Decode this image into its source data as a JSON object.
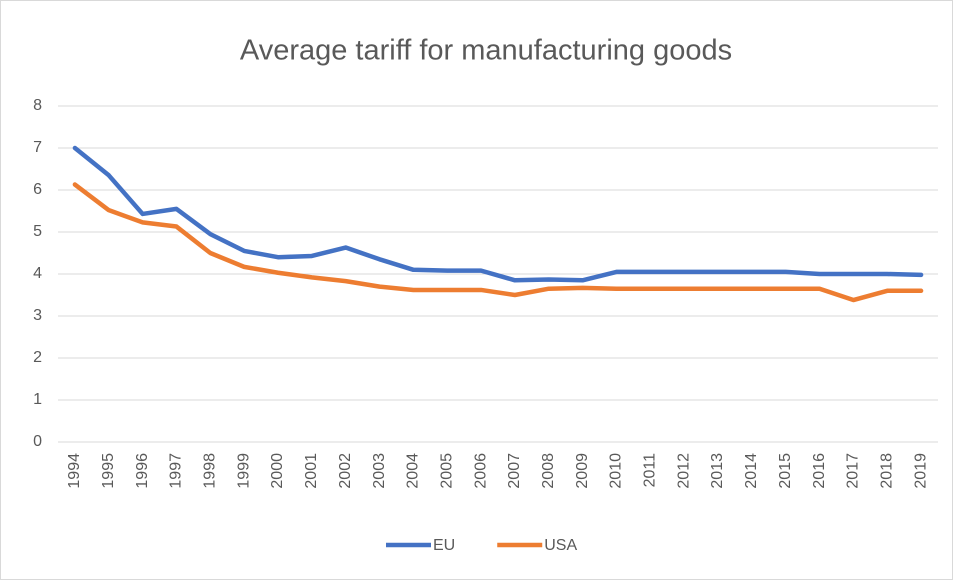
{
  "chart_data": {
    "type": "line",
    "title": "Average tariff for manufacturing goods",
    "categories": [
      "1994",
      "1995",
      "1996",
      "1997",
      "1998",
      "1999",
      "2000",
      "2001",
      "2002",
      "2003",
      "2004",
      "2005",
      "2006",
      "2007",
      "2008",
      "2009",
      "2010",
      "2011",
      "2012",
      "2013",
      "2014",
      "2015",
      "2016",
      "2017",
      "2018",
      "2019"
    ],
    "series": [
      {
        "name": "EU",
        "color": "#4472c4",
        "values": [
          7.0,
          6.35,
          5.43,
          5.55,
          4.95,
          4.55,
          4.4,
          4.43,
          4.63,
          4.35,
          4.1,
          4.08,
          4.08,
          3.85,
          3.87,
          3.85,
          4.05,
          4.05,
          4.05,
          4.05,
          4.05,
          4.05,
          4.0,
          4.0,
          4.0,
          3.98
        ]
      },
      {
        "name": "USA",
        "color": "#ed7d31",
        "values": [
          6.13,
          5.52,
          5.23,
          5.13,
          4.5,
          4.17,
          4.03,
          3.92,
          3.83,
          3.7,
          3.62,
          3.62,
          3.62,
          3.5,
          3.65,
          3.67,
          3.65,
          3.65,
          3.65,
          3.65,
          3.65,
          3.65,
          3.65,
          3.38,
          3.6,
          3.6
        ]
      }
    ],
    "ylim": [
      0,
      8
    ],
    "yticks": [
      0,
      1,
      2,
      3,
      4,
      5,
      6,
      7,
      8
    ],
    "grid": true,
    "legend": "bottom"
  }
}
